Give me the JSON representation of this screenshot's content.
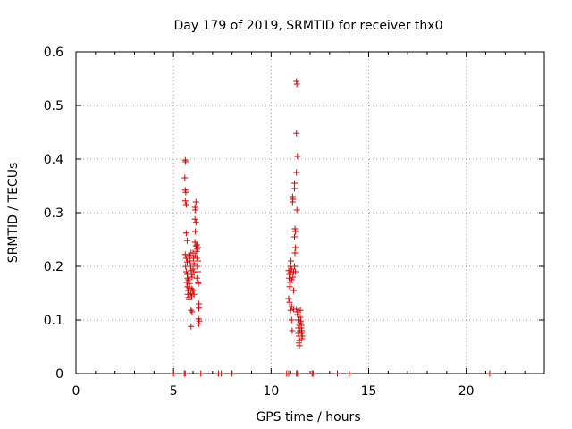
{
  "chart_data": {
    "type": "scatter",
    "title": "Day 179 of 2019, SRMTID for receiver thx0",
    "xlabel": "GPS time / hours",
    "ylabel": "SRMTID / TECUs",
    "xlim": [
      0,
      24
    ],
    "ylim": [
      0,
      0.6
    ],
    "xticks": [
      0,
      5,
      10,
      15,
      20
    ],
    "xtick_labels": [
      "0",
      "5",
      "10",
      "15",
      "20"
    ],
    "yticks": [
      0,
      0.1,
      0.2,
      0.3,
      0.4,
      0.5,
      0.6
    ],
    "ytick_labels": [
      "0",
      "0.1",
      "0.2",
      "0.3",
      "0.4",
      "0.5",
      "0.6"
    ],
    "grid": true,
    "marker": "+",
    "marker_color": "#e00000",
    "series": [
      {
        "name": "thx0",
        "points": [
          [
            5.6,
            0.398
          ],
          [
            5.62,
            0.395
          ],
          [
            5.58,
            0.365
          ],
          [
            5.6,
            0.342
          ],
          [
            5.63,
            0.338
          ],
          [
            5.6,
            0.322
          ],
          [
            5.65,
            0.315
          ],
          [
            5.65,
            0.262
          ],
          [
            5.7,
            0.248
          ],
          [
            5.6,
            0.222
          ],
          [
            5.65,
            0.215
          ],
          [
            5.7,
            0.208
          ],
          [
            5.62,
            0.2
          ],
          [
            5.66,
            0.19
          ],
          [
            5.7,
            0.185
          ],
          [
            5.72,
            0.178
          ],
          [
            5.68,
            0.17
          ],
          [
            5.72,
            0.162
          ],
          [
            5.75,
            0.155
          ],
          [
            5.73,
            0.148
          ],
          [
            5.78,
            0.142
          ],
          [
            5.8,
            0.138
          ],
          [
            5.76,
            0.175
          ],
          [
            5.82,
            0.168
          ],
          [
            5.8,
            0.16
          ],
          [
            5.85,
            0.21
          ],
          [
            5.84,
            0.22
          ],
          [
            5.9,
            0.225
          ],
          [
            5.88,
            0.2
          ],
          [
            5.9,
            0.192
          ],
          [
            5.92,
            0.185
          ],
          [
            5.95,
            0.18
          ],
          [
            5.88,
            0.15
          ],
          [
            5.93,
            0.145
          ],
          [
            5.95,
            0.158
          ],
          [
            5.9,
            0.118
          ],
          [
            5.95,
            0.115
          ],
          [
            5.9,
            0.088
          ],
          [
            6.0,
            0.225
          ],
          [
            6.02,
            0.215
          ],
          [
            6.05,
            0.205
          ],
          [
            6.0,
            0.195
          ],
          [
            6.05,
            0.188
          ],
          [
            6.0,
            0.155
          ],
          [
            6.05,
            0.148
          ],
          [
            6.1,
            0.31
          ],
          [
            6.12,
            0.305
          ],
          [
            6.15,
            0.32
          ],
          [
            6.1,
            0.288
          ],
          [
            6.15,
            0.282
          ],
          [
            6.12,
            0.265
          ],
          [
            6.1,
            0.245
          ],
          [
            6.15,
            0.238
          ],
          [
            6.2,
            0.232
          ],
          [
            6.18,
            0.228
          ],
          [
            6.1,
            0.22
          ],
          [
            6.2,
            0.215
          ],
          [
            6.25,
            0.21
          ],
          [
            6.22,
            0.2
          ],
          [
            6.25,
            0.19
          ],
          [
            6.2,
            0.178
          ],
          [
            6.25,
            0.17
          ],
          [
            6.28,
            0.168
          ],
          [
            6.3,
            0.13
          ],
          [
            6.3,
            0.122
          ],
          [
            6.28,
            0.102
          ],
          [
            6.32,
            0.098
          ],
          [
            6.3,
            0.093
          ],
          [
            6.2,
            0.24
          ],
          [
            6.25,
            0.235
          ],
          [
            10.9,
            0.192
          ],
          [
            10.95,
            0.185
          ],
          [
            10.92,
            0.178
          ],
          [
            10.98,
            0.17
          ],
          [
            10.95,
            0.162
          ],
          [
            10.9,
            0.14
          ],
          [
            10.95,
            0.133
          ],
          [
            11.0,
            0.2
          ],
          [
            11.02,
            0.21
          ],
          [
            11.05,
            0.195
          ],
          [
            11.0,
            0.188
          ],
          [
            11.05,
            0.175
          ],
          [
            11.05,
            0.125
          ],
          [
            11.0,
            0.118
          ],
          [
            11.05,
            0.1
          ],
          [
            11.08,
            0.08
          ],
          [
            11.1,
            0.33
          ],
          [
            11.12,
            0.325
          ],
          [
            11.1,
            0.32
          ],
          [
            11.15,
            0.19
          ],
          [
            11.12,
            0.18
          ],
          [
            11.15,
            0.155
          ],
          [
            11.15,
            0.12
          ],
          [
            11.2,
            0.355
          ],
          [
            11.2,
            0.345
          ],
          [
            11.22,
            0.27
          ],
          [
            11.25,
            0.265
          ],
          [
            11.2,
            0.255
          ],
          [
            11.25,
            0.235
          ],
          [
            11.22,
            0.225
          ],
          [
            11.2,
            0.2
          ],
          [
            11.25,
            0.19
          ],
          [
            11.3,
            0.545
          ],
          [
            11.32,
            0.54
          ],
          [
            11.3,
            0.448
          ],
          [
            11.35,
            0.405
          ],
          [
            11.3,
            0.375
          ],
          [
            11.32,
            0.305
          ],
          [
            11.3,
            0.12
          ],
          [
            11.35,
            0.115
          ],
          [
            11.35,
            0.11
          ],
          [
            11.38,
            0.1
          ],
          [
            11.4,
            0.085
          ],
          [
            11.4,
            0.075
          ],
          [
            11.42,
            0.07
          ],
          [
            11.45,
            0.062
          ],
          [
            11.42,
            0.057
          ],
          [
            11.45,
            0.052
          ],
          [
            11.5,
            0.118
          ],
          [
            11.5,
            0.105
          ],
          [
            11.52,
            0.098
          ],
          [
            11.55,
            0.09
          ],
          [
            11.55,
            0.085
          ],
          [
            11.58,
            0.08
          ],
          [
            11.55,
            0.075
          ],
          [
            11.6,
            0.07
          ],
          [
            11.5,
            0.095
          ],
          [
            11.58,
            0.065
          ],
          [
            11.45,
            0.09
          ],
          [
            11.48,
            0.08
          ],
          [
            5.0,
            0.0
          ],
          [
            5.55,
            0.0
          ],
          [
            5.6,
            0.0
          ],
          [
            6.4,
            0.0
          ],
          [
            7.3,
            0.0
          ],
          [
            7.45,
            0.0
          ],
          [
            8.0,
            0.0
          ],
          [
            10.8,
            0.0
          ],
          [
            10.9,
            0.0
          ],
          [
            11.3,
            0.0
          ],
          [
            11.35,
            0.0
          ],
          [
            12.1,
            0.0
          ],
          [
            12.15,
            0.0
          ],
          [
            13.4,
            0.0
          ],
          [
            14.0,
            0.0
          ],
          [
            21.2,
            0.0
          ]
        ]
      }
    ]
  }
}
